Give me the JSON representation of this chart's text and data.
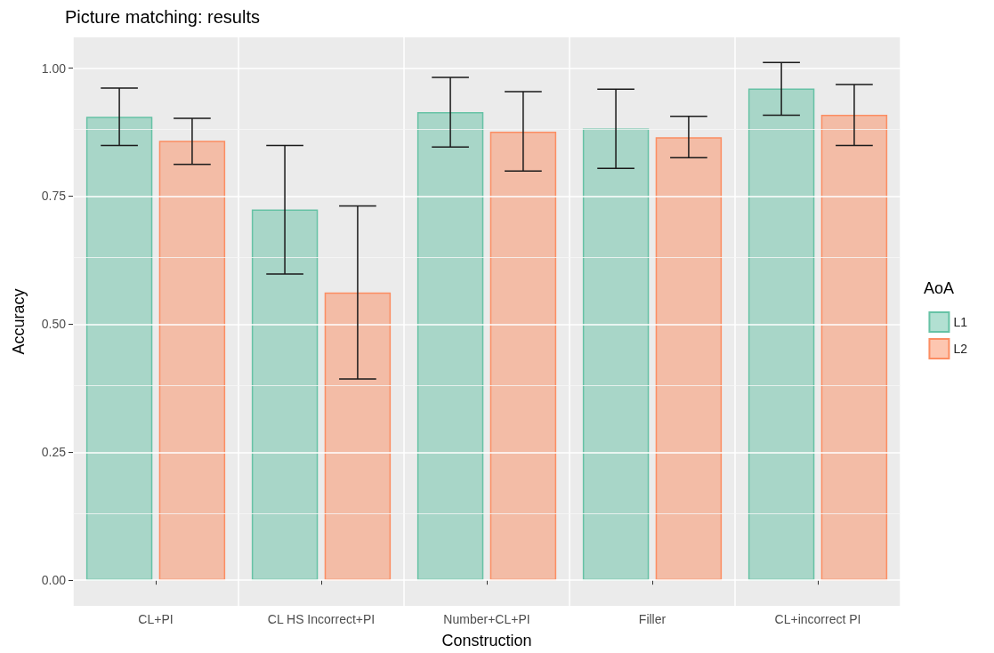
{
  "chart_data": {
    "type": "bar",
    "title": "Picture matching: results",
    "xlabel": "Construction",
    "ylabel": "Accuracy",
    "legend_title": "AoA",
    "categories": [
      "CL+PI",
      "CL HS Incorrect+PI",
      "Number+CL+PI",
      "Filler",
      "CL+incorrect PI"
    ],
    "series": [
      {
        "name": "L1",
        "color": "#66c2a5",
        "values": [
          0.905,
          0.724,
          0.914,
          0.882,
          0.96
        ],
        "errors": [
          [
            0.849,
            0.961
          ],
          [
            0.598,
            0.849
          ],
          [
            0.846,
            0.982
          ],
          [
            0.804,
            0.959
          ],
          [
            0.908,
            1.011
          ]
        ]
      },
      {
        "name": "L2",
        "color": "#fc8d62",
        "values": [
          0.858,
          0.562,
          0.876,
          0.865,
          0.909
        ],
        "errors": [
          [
            0.812,
            0.902
          ],
          [
            0.393,
            0.731
          ],
          [
            0.799,
            0.954
          ],
          [
            0.825,
            0.906
          ],
          [
            0.849,
            0.968
          ]
        ]
      }
    ],
    "ylim": [
      -0.05,
      1.06
    ],
    "yticks": [
      {
        "value": 0,
        "label": "0.00"
      },
      {
        "value": 0.25,
        "label": "0.25"
      },
      {
        "value": 0.5,
        "label": "0.50"
      },
      {
        "value": 0.75,
        "label": "0.75"
      },
      {
        "value": 1,
        "label": "1.00"
      }
    ],
    "grid": true,
    "legend": "right"
  }
}
